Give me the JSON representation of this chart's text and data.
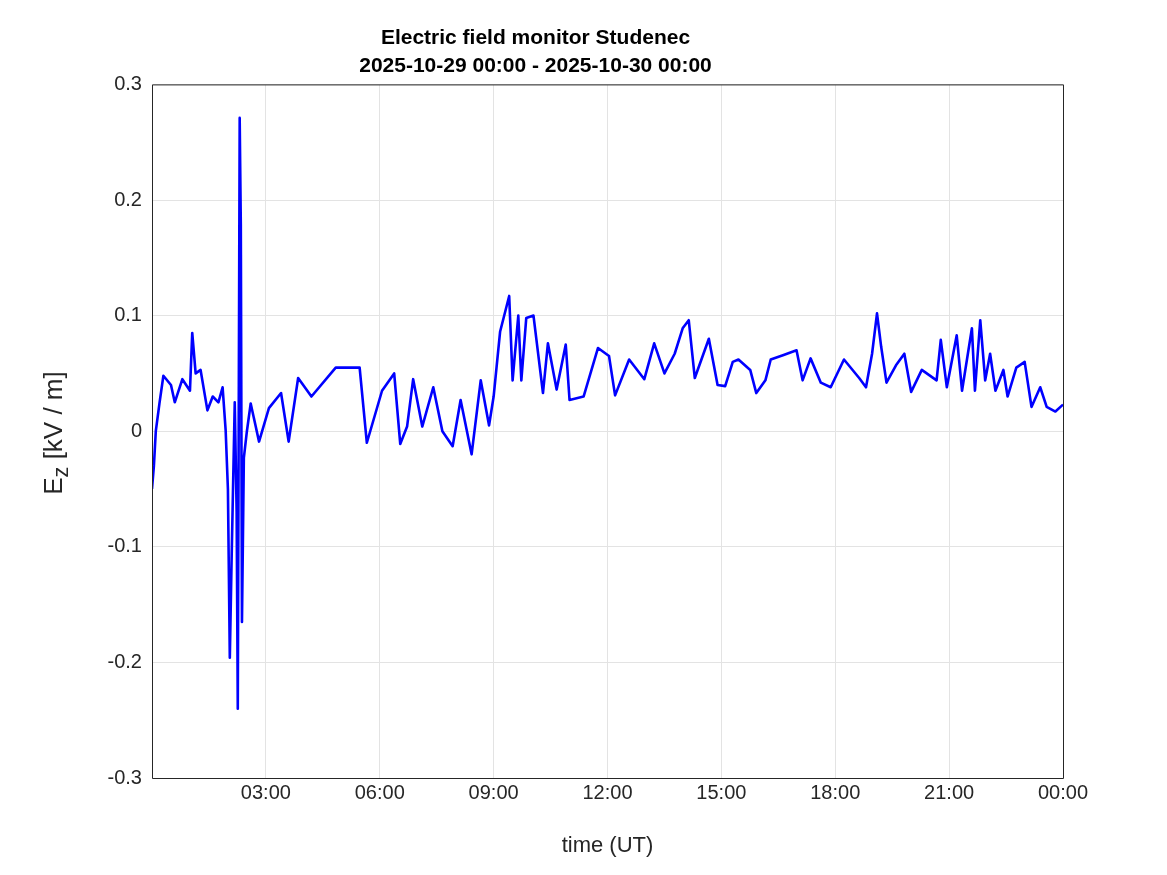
{
  "chart_data": {
    "type": "line",
    "title": "Electric field monitor Studenec",
    "subtitle": "2025-10-29 00:00 - 2025-10-30 00:00",
    "xlabel": "time (UT)",
    "ylabel": "E$_{z}$ [kV / m]",
    "xlim": [
      0,
      24
    ],
    "ylim": [
      -0.3,
      0.3
    ],
    "xticks": [
      {
        "value": 3,
        "label": "03:00"
      },
      {
        "value": 6,
        "label": "06:00"
      },
      {
        "value": 9,
        "label": "09:00"
      },
      {
        "value": 12,
        "label": "12:00"
      },
      {
        "value": 15,
        "label": "15:00"
      },
      {
        "value": 18,
        "label": "18:00"
      },
      {
        "value": 21,
        "label": "21:00"
      },
      {
        "value": 24,
        "label": "00:00"
      }
    ],
    "yticks": [
      -0.3,
      -0.2,
      -0.1,
      0,
      0.1,
      0.2,
      0.3
    ],
    "grid": true,
    "x": [
      0,
      0.05,
      0.1,
      0.2,
      0.3,
      0.5,
      0.6,
      0.8,
      1.0,
      1.06,
      1.15,
      1.28,
      1.46,
      1.6,
      1.75,
      1.86,
      1.94,
      2.0,
      2.05,
      2.1,
      2.18,
      2.23,
      2.26,
      2.31,
      2.34,
      2.37,
      2.42,
      2.5,
      2.6,
      2.82,
      3.08,
      3.4,
      3.6,
      3.85,
      4.2,
      4.84,
      5.13,
      5.47,
      5.66,
      6.06,
      6.38,
      6.54,
      6.72,
      6.88,
      7.12,
      7.41,
      7.65,
      7.92,
      8.13,
      8.42,
      8.66,
      8.88,
      9.0,
      9.17,
      9.41,
      9.5,
      9.65,
      9.73,
      9.86,
      10.05,
      10.3,
      10.43,
      10.66,
      10.9,
      11.0,
      11.37,
      11.75,
      12.04,
      12.2,
      12.57,
      12.97,
      13.23,
      13.5,
      13.77,
      13.98,
      14.14,
      14.3,
      14.67,
      14.9,
      15.1,
      15.3,
      15.45,
      15.76,
      15.92,
      16.16,
      16.3,
      16.64,
      16.98,
      17.14,
      17.35,
      17.62,
      17.88,
      18.23,
      18.63,
      18.81,
      18.97,
      19.1,
      19.21,
      19.35,
      19.6,
      19.82,
      20.0,
      20.28,
      20.67,
      20.78,
      20.94,
      21.2,
      21.34,
      21.47,
      21.6,
      21.68,
      21.82,
      21.95,
      22.08,
      22.22,
      22.43,
      22.54,
      22.77,
      22.99,
      23.17,
      23.4,
      23.57,
      23.8,
      24
    ],
    "series": [
      {
        "color": "#0000ff",
        "values": [
          -0.05,
          -0.03,
          0.0,
          0.025,
          0.048,
          0.04,
          0.025,
          0.045,
          0.035,
          0.085,
          0.05,
          0.053,
          0.018,
          0.03,
          0.025,
          0.038,
          0.001,
          -0.05,
          -0.196,
          -0.106,
          0.025,
          -0.07,
          -0.24,
          0.271,
          0.178,
          -0.165,
          -0.023,
          0.0,
          0.024,
          -0.009,
          0.02,
          0.033,
          -0.009,
          0.046,
          0.03,
          0.055,
          0.055,
          0.055,
          -0.01,
          0.035,
          0.05,
          -0.011,
          0.004,
          0.045,
          0.004,
          0.038,
          0.0,
          -0.013,
          0.027,
          -0.02,
          0.044,
          0.005,
          0.03,
          0.086,
          0.117,
          0.044,
          0.1,
          0.044,
          0.098,
          0.1,
          0.033,
          0.076,
          0.036,
          0.075,
          0.027,
          0.03,
          0.072,
          0.065,
          0.031,
          0.062,
          0.045,
          0.076,
          0.05,
          0.067,
          0.089,
          0.096,
          0.046,
          0.08,
          0.04,
          0.039,
          0.06,
          0.062,
          0.053,
          0.033,
          0.044,
          0.062,
          0.066,
          0.07,
          0.044,
          0.063,
          0.042,
          0.038,
          0.062,
          0.046,
          0.038,
          0.067,
          0.102,
          0.073,
          0.042,
          0.057,
          0.067,
          0.034,
          0.053,
          0.044,
          0.079,
          0.038,
          0.083,
          0.035,
          0.062,
          0.089,
          0.035,
          0.096,
          0.044,
          0.067,
          0.035,
          0.053,
          0.03,
          0.055,
          0.06,
          0.021,
          0.038,
          0.021,
          0.017,
          0.023
        ]
      }
    ]
  }
}
